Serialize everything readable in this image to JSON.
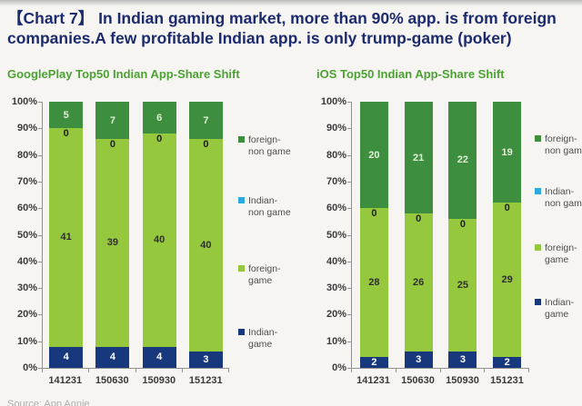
{
  "page": {
    "title": "【Chart 7】 In Indian gaming market, more than 90% app. is from foreign companies.A few profitable Indian app. is only trump-game (poker)",
    "source_note": "Source: App Annie"
  },
  "colors": {
    "title_text": "#1c2b6e",
    "chart_title_text": "#4ba233",
    "axis_text": "#3a3a3a",
    "legend_text": "#4d4d4d",
    "foreign_non_game": "#3e8e40",
    "indian_non_game": "#2da9e1",
    "foreign_game": "#96c83e",
    "indian_game": "#17387d"
  },
  "chart_data": [
    {
      "type": "bar",
      "stacked": true,
      "title": "GooglePlay Top50 Indian App-Share Shift",
      "categories": [
        "141231",
        "150630",
        "150930",
        "151231"
      ],
      "total": 50,
      "ylim": [
        0,
        100
      ],
      "grid": false,
      "y_ticks": [
        "100%",
        "90%",
        "80%",
        "70%",
        "60%",
        "50%",
        "40%",
        "30%",
        "20%",
        "10%",
        "0%"
      ],
      "series": [
        {
          "name": "Indian-game",
          "key": "indian_game",
          "values": [
            4,
            4,
            4,
            3
          ],
          "label_color": "#ffffff"
        },
        {
          "name": "foreign-game",
          "key": "foreign_game",
          "values": [
            41,
            39,
            40,
            40
          ],
          "label_color": "#2f2f2f"
        },
        {
          "name": "Indian-non game",
          "key": "indian_non_game",
          "values": [
            0,
            0,
            0,
            0
          ],
          "label_color": "#1f1f1f"
        },
        {
          "name": "foreign-non game",
          "key": "foreign_non_game",
          "values": [
            5,
            7,
            6,
            7
          ],
          "label_color": "#e2f1d5"
        }
      ],
      "legend_position": "right",
      "legend": [
        {
          "key": "foreign_non_game",
          "lines": [
            "foreign-",
            "non game"
          ]
        },
        {
          "key": "indian_non_game",
          "lines": [
            "Indian-",
            "non game"
          ]
        },
        {
          "key": "foreign_game",
          "lines": [
            "foreign-",
            "game"
          ]
        },
        {
          "key": "indian_game",
          "lines": [
            "Indian-",
            "game"
          ]
        }
      ]
    },
    {
      "type": "bar",
      "stacked": true,
      "title": "iOS Top50 Indian App-Share Shift",
      "categories": [
        "141231",
        "150630",
        "150930",
        "151231"
      ],
      "total": 50,
      "ylim": [
        0,
        100
      ],
      "grid": false,
      "y_ticks": [
        "100%",
        "90%",
        "80%",
        "70%",
        "60%",
        "50%",
        "40%",
        "30%",
        "20%",
        "10%",
        "0%"
      ],
      "series": [
        {
          "name": "Indian-game",
          "key": "indian_game",
          "values": [
            2,
            3,
            3,
            2
          ],
          "label_color": "#ffffff"
        },
        {
          "name": "foreign-game",
          "key": "foreign_game",
          "values": [
            28,
            26,
            25,
            29
          ],
          "label_color": "#2f2f2f"
        },
        {
          "name": "Indian-non game",
          "key": "indian_non_game",
          "values": [
            0,
            0,
            0,
            0
          ],
          "label_color": "#1f1f1f"
        },
        {
          "name": "foreign-non game",
          "key": "foreign_non_game",
          "values": [
            20,
            21,
            22,
            19
          ],
          "label_color": "#e2f1d5"
        }
      ],
      "legend_position": "right",
      "legend": [
        {
          "key": "foreign_non_game",
          "lines": [
            "foreign-",
            "non game"
          ]
        },
        {
          "key": "indian_non_game",
          "lines": [
            "Indian-",
            "non game"
          ]
        },
        {
          "key": "foreign_game",
          "lines": [
            "foreign-",
            "game"
          ]
        },
        {
          "key": "indian_game",
          "lines": [
            "Indian-",
            "game"
          ]
        }
      ]
    }
  ]
}
